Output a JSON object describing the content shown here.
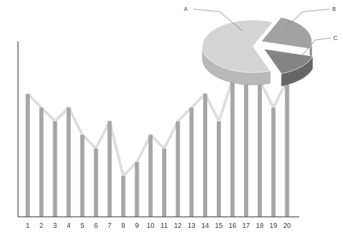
{
  "chart_data": [
    {
      "type": "bar",
      "categories": [
        "1",
        "2",
        "3",
        "4",
        "5",
        "6",
        "7",
        "8",
        "9",
        "10",
        "11",
        "12",
        "13",
        "14",
        "15",
        "16",
        "17",
        "18",
        "19",
        "20"
      ],
      "values": [
        9,
        8,
        7,
        8,
        6,
        5,
        7,
        3,
        4,
        6,
        5,
        7,
        8,
        9,
        7,
        10,
        10,
        10,
        8,
        10
      ],
      "overlay": "line connecting bar tops",
      "title": "",
      "xlabel": "",
      "ylabel": "",
      "ylim": [
        0,
        13
      ],
      "grid": false,
      "legend": "none"
    },
    {
      "type": "pie",
      "style": "3d-exploded",
      "labels": [
        "A",
        "B",
        "C"
      ],
      "values": [
        62,
        23,
        15
      ],
      "legend": "callout labels"
    }
  ],
  "colors": {
    "bar": "#a6a6a6",
    "line": "#dedede",
    "axis": "#555555",
    "pie_a_top": "#d4d4d4",
    "pie_a_side": "#b9b9b9",
    "pie_b_top": "#a2a2a2",
    "pie_b_side": "#8a8a8a",
    "pie_c_top": "#858585",
    "pie_c_side": "#666666"
  }
}
